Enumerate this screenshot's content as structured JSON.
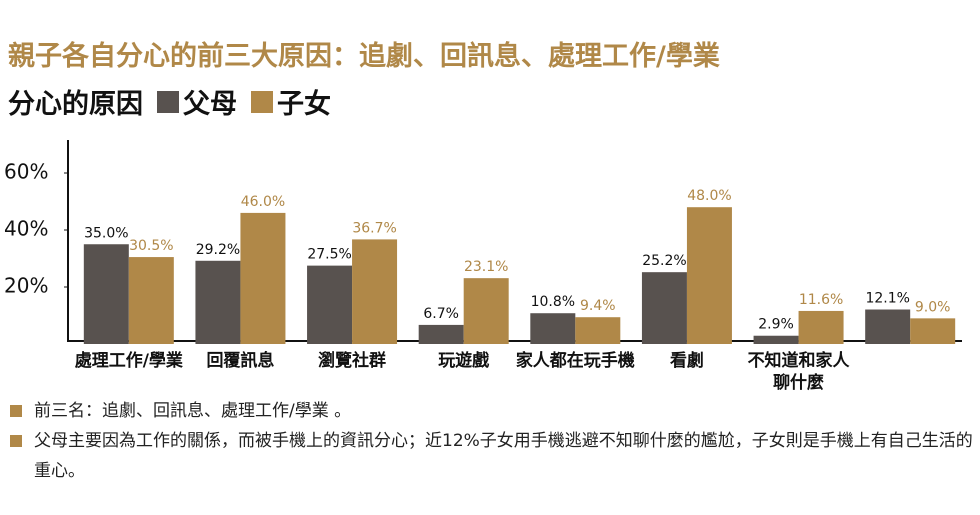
{
  "chart_data": {
    "type": "bar",
    "title": "親子各自分心的前三大原因：追劇、回訊息、處理工作/學業",
    "subtitle": "分心的原因",
    "categories": [
      "處理工作/學業",
      "回覆訊息",
      "瀏覽社群",
      "玩遊戲",
      "家人都在玩手機",
      "看劇",
      "不知道和家人\n聊什麼",
      null
    ],
    "series": [
      {
        "name": "父母",
        "color": "#58524f",
        "label_color": "#111111",
        "values": [
          35.0,
          29.2,
          27.5,
          6.7,
          10.8,
          25.2,
          2.9,
          12.1
        ],
        "value_labels": [
          "35.0%",
          "29.2%",
          "27.5%",
          "6.7%",
          "10.8%",
          "25.2%",
          "2.9%",
          "12.1%"
        ]
      },
      {
        "name": "子女",
        "color": "#b08848",
        "label_color": "#b08848",
        "values": [
          30.5,
          46.0,
          36.7,
          23.1,
          9.4,
          48.0,
          11.6,
          9.0
        ],
        "value_labels": [
          "30.5%",
          "46.0%",
          "36.7%",
          "23.1%",
          "9.4%",
          "48.0%",
          "11.6%",
          "9.0%"
        ]
      }
    ],
    "ylim": [
      0,
      70
    ],
    "yticks": [
      {
        "value": 20,
        "label": "20%"
      },
      {
        "value": 40,
        "label": "40%"
      },
      {
        "value": 60,
        "label": "60%"
      }
    ],
    "grid": false,
    "notes": [
      "前三名：追劇、回訊息、處理工作/學業 。",
      "父母主要因為工作的關係，而被手機上的資訊分心；近12%子女用手機逃避不知聊什麼的尷尬，子女則是手機上有自己生活的重心。"
    ]
  }
}
